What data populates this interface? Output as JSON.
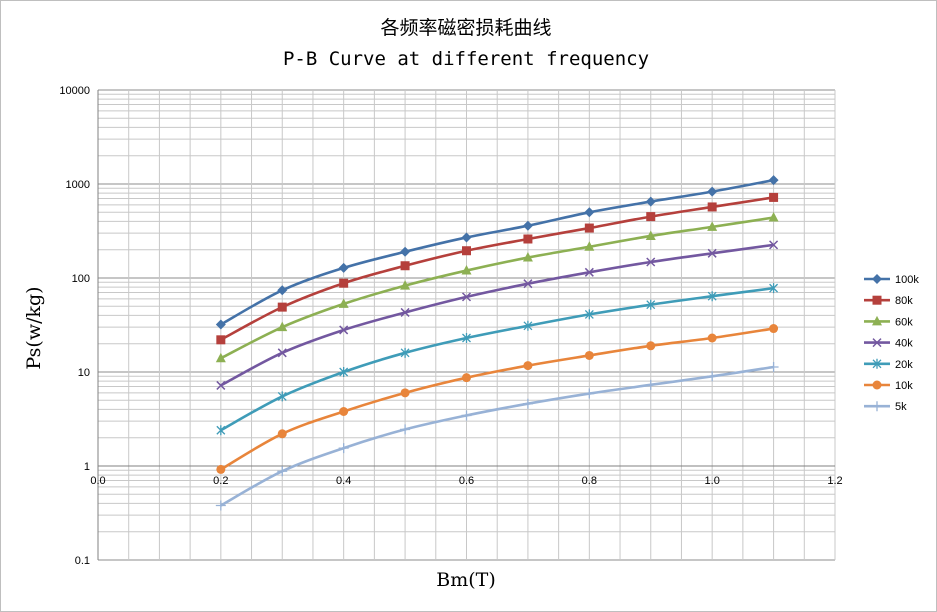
{
  "chart_data": {
    "type": "scatter",
    "title": "各频率磁密损耗曲线",
    "subtitle": "P-B Curve at different frequency",
    "xlabel": "Bm(T)",
    "ylabel": "Ps(w/kg)",
    "xlim": [
      0.0,
      1.2
    ],
    "ylim": [
      0.1,
      10000
    ],
    "yscale": "log",
    "x_ticks": [
      "0.0",
      "0.2",
      "0.4",
      "0.6",
      "0.8",
      "1.0",
      "1.2"
    ],
    "y_ticks": [
      "0.1",
      "1",
      "10",
      "100",
      "1000",
      "10000"
    ],
    "grid": true,
    "legend_position": "right",
    "series": [
      {
        "name": "100k",
        "color": "#4472A8",
        "marker": "diamond",
        "x": [
          0.2,
          0.3,
          0.4,
          0.5,
          0.6,
          0.7,
          0.8,
          0.9,
          1.0,
          1.1
        ],
        "y": [
          32,
          74,
          128,
          190,
          270,
          360,
          500,
          650,
          830,
          1100
        ]
      },
      {
        "name": "80k",
        "color": "#B5403C",
        "marker": "square",
        "x": [
          0.2,
          0.3,
          0.4,
          0.5,
          0.6,
          0.7,
          0.8,
          0.9,
          1.0,
          1.1
        ],
        "y": [
          22,
          49,
          88,
          135,
          195,
          260,
          340,
          450,
          570,
          720
        ]
      },
      {
        "name": "60k",
        "color": "#8DB053",
        "marker": "triangle",
        "x": [
          0.2,
          0.3,
          0.4,
          0.5,
          0.6,
          0.7,
          0.8,
          0.9,
          1.0,
          1.1
        ],
        "y": [
          14,
          30,
          53,
          83,
          120,
          165,
          215,
          280,
          350,
          440
        ]
      },
      {
        "name": "40k",
        "color": "#7358A0",
        "marker": "x",
        "x": [
          0.2,
          0.3,
          0.4,
          0.5,
          0.6,
          0.7,
          0.8,
          0.9,
          1.0,
          1.1
        ],
        "y": [
          7.2,
          16,
          28,
          43,
          63,
          87,
          115,
          148,
          183,
          225
        ]
      },
      {
        "name": "20k",
        "color": "#3F9CB8",
        "marker": "star",
        "x": [
          0.2,
          0.3,
          0.4,
          0.5,
          0.6,
          0.7,
          0.8,
          0.9,
          1.0,
          1.1
        ],
        "y": [
          2.4,
          5.5,
          10,
          16,
          23,
          31,
          41,
          52,
          64,
          78
        ]
      },
      {
        "name": "10k",
        "color": "#E8853B",
        "marker": "circle",
        "x": [
          0.2,
          0.3,
          0.4,
          0.5,
          0.6,
          0.7,
          0.8,
          0.9,
          1.0,
          1.1
        ],
        "y": [
          0.92,
          2.2,
          3.8,
          6.0,
          8.7,
          11.7,
          15,
          19,
          23,
          29
        ]
      },
      {
        "name": "5k",
        "color": "#98B2D6",
        "marker": "plus",
        "x": [
          0.2,
          0.3,
          0.4,
          0.5,
          0.6,
          0.7,
          0.8,
          0.9,
          1.0,
          1.1
        ],
        "y": [
          0.38,
          0.88,
          1.55,
          2.45,
          3.45,
          4.6,
          5.9,
          7.3,
          9.0,
          11.3
        ]
      }
    ]
  }
}
